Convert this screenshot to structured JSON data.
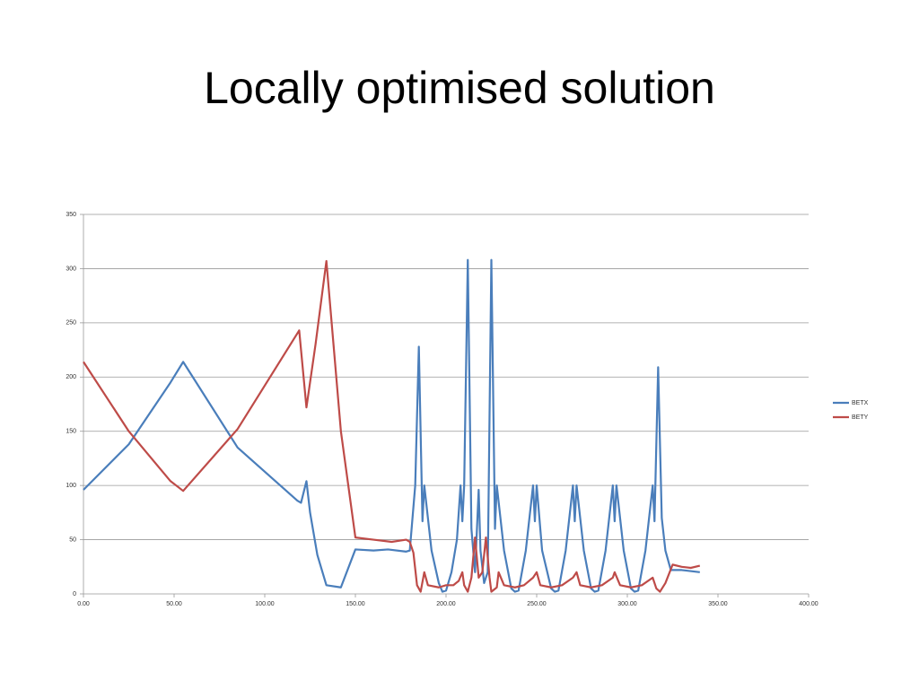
{
  "chart_data": {
    "type": "line",
    "title": "Locally optimised solution",
    "xlim": [
      0,
      400
    ],
    "xticks": [
      {
        "value": 0,
        "label": "0.00"
      },
      {
        "value": 50,
        "label": "50.00"
      },
      {
        "value": 100,
        "label": "100.00"
      },
      {
        "value": 150,
        "label": "150.00"
      },
      {
        "value": 200,
        "label": "200.00"
      },
      {
        "value": 250,
        "label": "250.00"
      },
      {
        "value": 300,
        "label": "300.00"
      },
      {
        "value": 350,
        "label": "350.00"
      },
      {
        "value": 400,
        "label": "400.00"
      }
    ],
    "ylim": [
      0,
      350
    ],
    "yticks": [
      0,
      50,
      100,
      150,
      200,
      250,
      300,
      350
    ],
    "grid": true,
    "legend": "right",
    "series": [
      {
        "name": "BETX",
        "color": "#4a7ebb",
        "x": [
          0,
          25,
          48,
          55,
          85,
          118,
          120,
          123,
          125,
          129,
          134,
          142,
          150,
          160,
          168,
          178,
          180,
          183,
          185,
          187,
          188,
          192,
          196,
          198,
          200,
          203,
          206,
          208,
          209,
          210,
          212,
          214,
          216,
          218,
          219,
          221,
          223,
          225,
          227,
          228,
          232,
          236,
          238,
          240,
          244,
          248,
          249,
          250,
          253,
          258,
          260,
          262,
          266,
          270,
          271,
          272,
          276,
          280,
          282,
          284,
          288,
          292,
          293,
          294,
          298,
          302,
          304,
          306,
          310,
          314,
          315,
          317,
          319,
          321,
          324,
          330,
          340
        ],
        "values": [
          96,
          138,
          195,
          214,
          135,
          86,
          84,
          104,
          75,
          36,
          8,
          6,
          41,
          40,
          41,
          39,
          40,
          100,
          228,
          67,
          100,
          40,
          10,
          2,
          3,
          20,
          50,
          100,
          67,
          100,
          308,
          60,
          20,
          96,
          40,
          10,
          20,
          308,
          60,
          100,
          40,
          5,
          2,
          3,
          40,
          100,
          67,
          100,
          40,
          5,
          2,
          3,
          40,
          100,
          67,
          100,
          40,
          5,
          2,
          3,
          40,
          100,
          67,
          100,
          40,
          5,
          2,
          3,
          40,
          100,
          67,
          209,
          70,
          40,
          22,
          22,
          20
        ]
      },
      {
        "name": "BETY",
        "color": "#be4b48",
        "x": [
          0,
          25,
          48,
          55,
          85,
          119,
          123,
          128,
          134,
          142,
          150,
          160,
          170,
          178,
          180,
          182,
          184,
          186,
          188,
          190,
          196,
          200,
          204,
          207,
          209,
          210,
          212,
          214,
          216,
          218,
          220,
          222,
          224,
          225,
          228,
          229,
          232,
          238,
          243,
          248,
          250,
          252,
          258,
          264,
          270,
          272,
          274,
          280,
          286,
          292,
          293,
          296,
          302,
          308,
          314,
          316,
          318,
          321,
          325,
          330,
          335,
          340
        ],
        "values": [
          214,
          150,
          104,
          95,
          152,
          243,
          172,
          230,
          307,
          150,
          52,
          50,
          48,
          50,
          48,
          38,
          8,
          2,
          20,
          8,
          6,
          8,
          8,
          12,
          20,
          8,
          2,
          15,
          52,
          15,
          20,
          52,
          15,
          2,
          6,
          20,
          8,
          6,
          8,
          15,
          20,
          8,
          6,
          8,
          15,
          20,
          8,
          6,
          8,
          15,
          20,
          8,
          6,
          8,
          15,
          5,
          2,
          10,
          27,
          25,
          24,
          26
        ]
      }
    ]
  }
}
